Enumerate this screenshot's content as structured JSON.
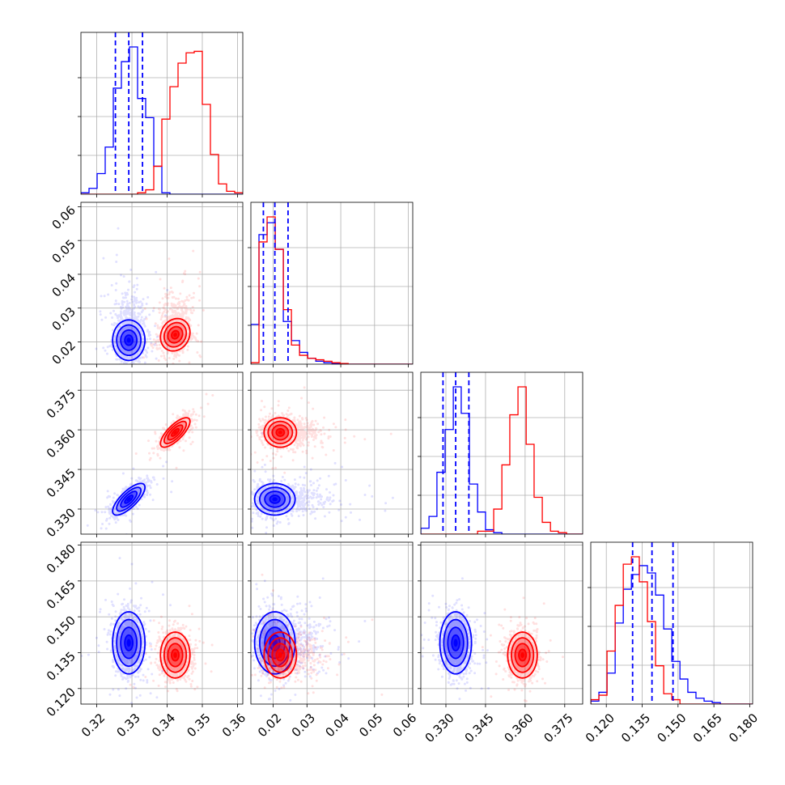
{
  "chart_data": {
    "type": "corner",
    "title": "",
    "grid": true,
    "series": [
      {
        "name": "",
        "color": "#0000ff"
      },
      {
        "name": "",
        "color": "#ff0000"
      }
    ],
    "parameters": [
      {
        "axis_range": [
          0.3155,
          0.3615
        ],
        "ticks": [
          "0.32",
          "0.33",
          "0.34",
          "0.35",
          "0.36"
        ],
        "tick_values": [
          0.32,
          0.33,
          0.34,
          0.35,
          0.36
        ]
      },
      {
        "axis_range": [
          0.0134,
          0.0613
        ],
        "ticks": [
          "0.02",
          "0.03",
          "0.04",
          "0.05",
          "0.06"
        ],
        "tick_values": [
          0.02,
          0.03,
          0.04,
          0.05,
          0.06
        ]
      },
      {
        "axis_range": [
          0.3205,
          0.3818
        ],
        "ticks": [
          "0.330",
          "0.345",
          "0.360",
          "0.375"
        ],
        "tick_values": [
          0.33,
          0.345,
          0.36,
          0.375
        ]
      },
      {
        "axis_range": [
          0.1135,
          0.1812
        ],
        "ticks": [
          "0.120",
          "0.135",
          "0.150",
          "0.165",
          "0.180"
        ],
        "tick_values": [
          0.12,
          0.135,
          0.15,
          0.165,
          0.18
        ]
      }
    ],
    "quantiles_blue": [
      [
        0.3253,
        0.3291,
        0.333
      ],
      [
        0.0171,
        0.0205,
        0.0244
      ],
      [
        0.3289,
        0.3337,
        0.3387
      ],
      [
        0.131,
        0.1391,
        0.1479
      ]
    ],
    "histograms": [
      {
        "bin_edges": [
          0.3155,
          0.3178,
          0.3201,
          0.3224,
          0.3247,
          0.327,
          0.3293,
          0.3316,
          0.3339,
          0.3362,
          0.3385,
          0.3408,
          0.3431,
          0.3454,
          0.3477,
          0.35,
          0.3523,
          0.3546,
          0.3569,
          0.3592,
          0.3615
        ],
        "blue": [
          0.01,
          0.04,
          0.14,
          0.32,
          0.72,
          0.9,
          1.0,
          0.65,
          0.52,
          0.19,
          0.01,
          0.0,
          0.0,
          0.0,
          0.0,
          0.0,
          0.0,
          0.0,
          0.0,
          0.0
        ],
        "red": [
          0.0,
          0.0,
          0.0,
          0.0,
          0.0,
          0.0,
          0.0,
          0.01,
          0.03,
          0.19,
          0.51,
          0.73,
          0.89,
          0.96,
          0.97,
          0.61,
          0.27,
          0.07,
          0.02,
          0.01
        ]
      },
      {
        "bin_edges": [
          0.0134,
          0.0158,
          0.0182,
          0.0206,
          0.023,
          0.0254,
          0.0278,
          0.0302,
          0.0326,
          0.035,
          0.0374,
          0.0398,
          0.0422,
          0.0446,
          0.047,
          0.0494,
          0.0518,
          0.0542,
          0.0566,
          0.059,
          0.0613
        ],
        "blue": [
          0.27,
          0.88,
          0.96,
          0.78,
          0.29,
          0.16,
          0.08,
          0.04,
          0.02,
          0.01,
          0.005,
          0.0,
          0.0,
          0.0,
          0.0,
          0.0,
          0.0,
          0.0,
          0.0,
          0.0
        ],
        "red": [
          0.01,
          0.83,
          1.0,
          0.78,
          0.37,
          0.13,
          0.06,
          0.04,
          0.03,
          0.02,
          0.01,
          0.005,
          0.0,
          0.0,
          0.0,
          0.0,
          0.0,
          0.0,
          0.0,
          0.0
        ]
      },
      {
        "bin_edges": [
          0.3205,
          0.3236,
          0.3266,
          0.3297,
          0.3328,
          0.3358,
          0.3389,
          0.342,
          0.345,
          0.3481,
          0.3512,
          0.3542,
          0.3573,
          0.3604,
          0.3634,
          0.3665,
          0.3696,
          0.3726,
          0.3757,
          0.3788,
          0.3818
        ],
        "blue": [
          0.04,
          0.12,
          0.42,
          0.71,
          1.0,
          0.82,
          0.34,
          0.15,
          0.03,
          0.01,
          0.0,
          0.0,
          0.0,
          0.0,
          0.0,
          0.0,
          0.0,
          0.0,
          0.0,
          0.0
        ],
        "red": [
          0.0,
          0.0,
          0.0,
          0.0,
          0.0,
          0.0,
          0.0,
          0.02,
          0.02,
          0.17,
          0.47,
          0.81,
          1.0,
          0.61,
          0.25,
          0.08,
          0.02,
          0.01,
          0.0,
          0.0
        ]
      },
      {
        "bin_edges": [
          0.1135,
          0.1169,
          0.1203,
          0.1237,
          0.1271,
          0.1305,
          0.1338,
          0.1372,
          0.1406,
          0.144,
          0.1474,
          0.1508,
          0.1541,
          0.1575,
          0.1609,
          0.1643,
          0.1677,
          0.1711,
          0.1745,
          0.1778,
          0.1812
        ],
        "blue": [
          0.02,
          0.08,
          0.21,
          0.55,
          0.78,
          0.88,
          0.94,
          0.89,
          0.74,
          0.51,
          0.29,
          0.17,
          0.08,
          0.04,
          0.02,
          0.01,
          0.0,
          0.0,
          0.0,
          0.0
        ],
        "red": [
          0.03,
          0.06,
          0.36,
          0.67,
          0.95,
          1.0,
          0.83,
          0.56,
          0.26,
          0.07,
          0.03,
          0.0,
          0.0,
          0.0,
          0.0,
          0.0,
          0.0,
          0.0,
          0.0,
          0.0
        ]
      }
    ],
    "gaussian_2d": {
      "blue": {
        "mean": [
          0.3291,
          0.0205,
          0.3337,
          0.1391
        ],
        "sd": [
          0.0023,
          0.003,
          0.003,
          0.0065
        ],
        "corr": {
          "1-0": 0.0,
          "2-0": 0.75,
          "2-1": 0.0,
          "3-0": 0.0,
          "3-1": 0.0,
          "3-2": 0.0
        }
      },
      "red": {
        "mean": [
          0.3423,
          0.0221,
          0.359,
          0.134
        ],
        "sd": [
          0.0021,
          0.0024,
          0.0028,
          0.0048
        ],
        "corr": {
          "1-0": 0.15,
          "2-0": 0.75,
          "2-1": 0.0,
          "3-0": 0.0,
          "3-1": 0.0,
          "3-2": 0.0
        }
      }
    },
    "contour_sigma_levels": [
      0.5,
      1.0,
      1.5,
      2.0
    ]
  }
}
